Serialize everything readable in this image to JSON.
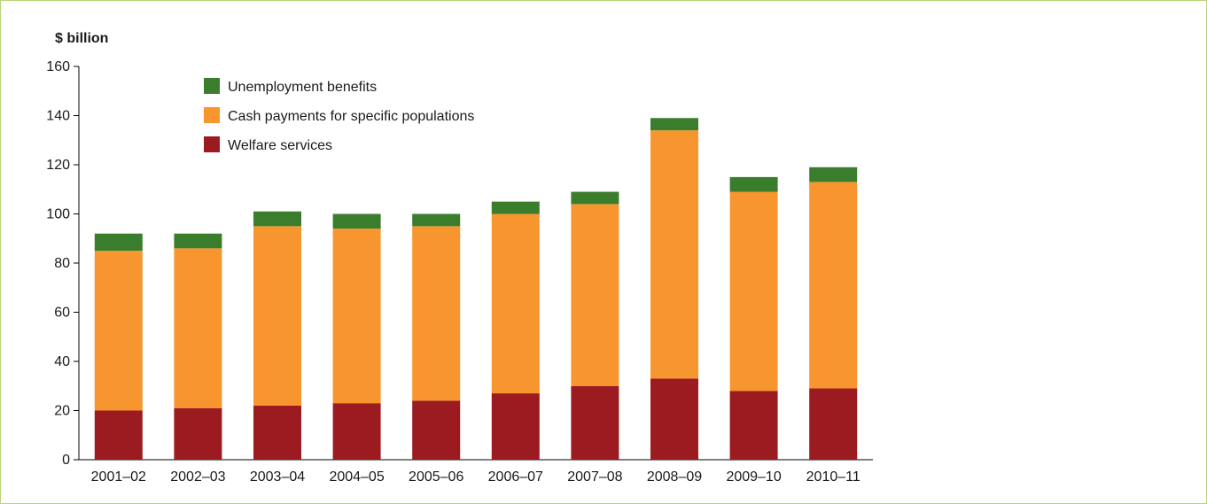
{
  "chart_data": {
    "type": "bar",
    "stacked": true,
    "title": "",
    "xlabel": "",
    "ylabel": "$ billion",
    "ylim": [
      0,
      160
    ],
    "yticks": [
      0,
      20,
      40,
      60,
      80,
      100,
      120,
      140,
      160
    ],
    "grid": false,
    "legend_position": "top-left",
    "categories": [
      "2001–02",
      "2002–03",
      "2003–04",
      "2004–05",
      "2005–06",
      "2006–07",
      "2007–08",
      "2008–09",
      "2009–10",
      "2010–11"
    ],
    "series": [
      {
        "name": "Welfare services",
        "color": "#9b1b20",
        "values": [
          20,
          21,
          22,
          23,
          24,
          27,
          30,
          33,
          28,
          29
        ]
      },
      {
        "name": "Cash payments for specific populations",
        "color": "#f7962f",
        "values": [
          65,
          65,
          73,
          71,
          71,
          73,
          74,
          101,
          81,
          84
        ]
      },
      {
        "name": "Unemployment benefits",
        "color": "#3a7d2c",
        "values": [
          7,
          6,
          6,
          6,
          5,
          5,
          5,
          5,
          6,
          6
        ]
      }
    ],
    "legend_order": [
      "Unemployment benefits",
      "Cash payments for specific populations",
      "Welfare services"
    ]
  }
}
